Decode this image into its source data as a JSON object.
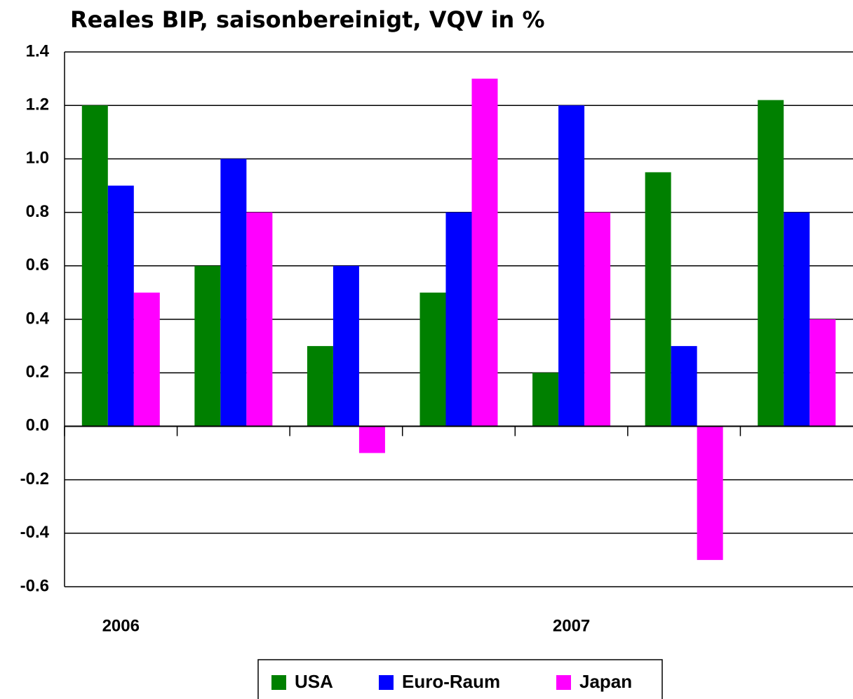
{
  "chart_data": {
    "type": "bar",
    "title": "Reales BIP, saisonbereinigt, VQV in %",
    "categories": [
      "2006",
      null,
      null,
      null,
      "2007",
      null,
      null
    ],
    "series": [
      {
        "name": "USA",
        "color": "#008000",
        "values": [
          1.2,
          0.6,
          0.3,
          0.5,
          0.2,
          0.95,
          1.22
        ]
      },
      {
        "name": "Euro-Raum",
        "color": "#0000ff",
        "values": [
          0.9,
          1.0,
          0.6,
          0.8,
          1.2,
          0.3,
          0.8
        ]
      },
      {
        "name": "Japan",
        "color": "#ff00ff",
        "values": [
          0.5,
          0.8,
          -0.1,
          1.3,
          0.8,
          -0.5,
          0.4
        ]
      }
    ],
    "ylim": [
      -0.6,
      1.4
    ],
    "yticks": [
      -0.6,
      -0.4,
      -0.2,
      {
        "value": 0,
        "label": "0.0"
      },
      0.2,
      0.4,
      0.6,
      0.8,
      {
        "value": 1,
        "label": "1.0"
      },
      1.2,
      1.4
    ],
    "grid": true,
    "legend": "bottom"
  }
}
